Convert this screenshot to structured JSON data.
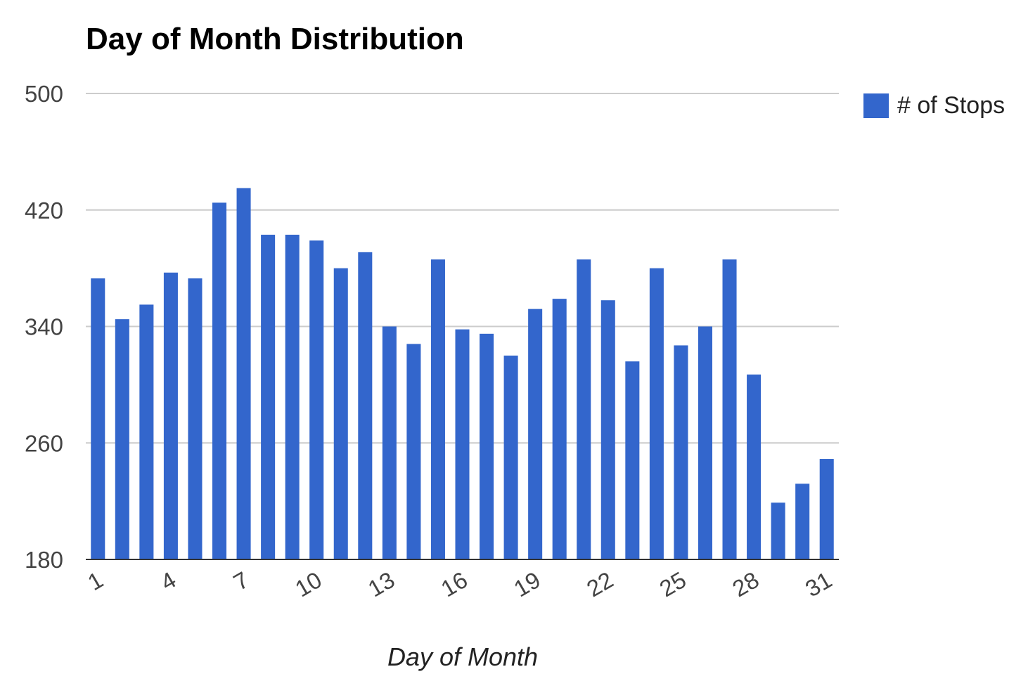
{
  "chart_data": {
    "type": "bar",
    "title": "Day of Month Distribution",
    "xlabel": "Day of Month",
    "ylabel": "",
    "ylim": [
      180,
      500
    ],
    "yticks": [
      180,
      260,
      340,
      420,
      500
    ],
    "xticks": [
      1,
      4,
      7,
      10,
      13,
      16,
      19,
      22,
      25,
      28,
      31
    ],
    "grid": true,
    "legend_position": "right",
    "categories": [
      1,
      2,
      3,
      4,
      5,
      6,
      7,
      8,
      9,
      10,
      11,
      12,
      13,
      14,
      15,
      16,
      17,
      18,
      19,
      20,
      21,
      22,
      23,
      24,
      25,
      26,
      27,
      28,
      29,
      30,
      31
    ],
    "series": [
      {
        "name": "# of Stops",
        "color": "#3366cc",
        "values": [
          373,
          345,
          355,
          377,
          373,
          425,
          435,
          403,
          403,
          399,
          380,
          391,
          340,
          328,
          386,
          338,
          335,
          320,
          352,
          359,
          386,
          358,
          316,
          380,
          327,
          340,
          386,
          307,
          219,
          232,
          249
        ]
      }
    ]
  }
}
